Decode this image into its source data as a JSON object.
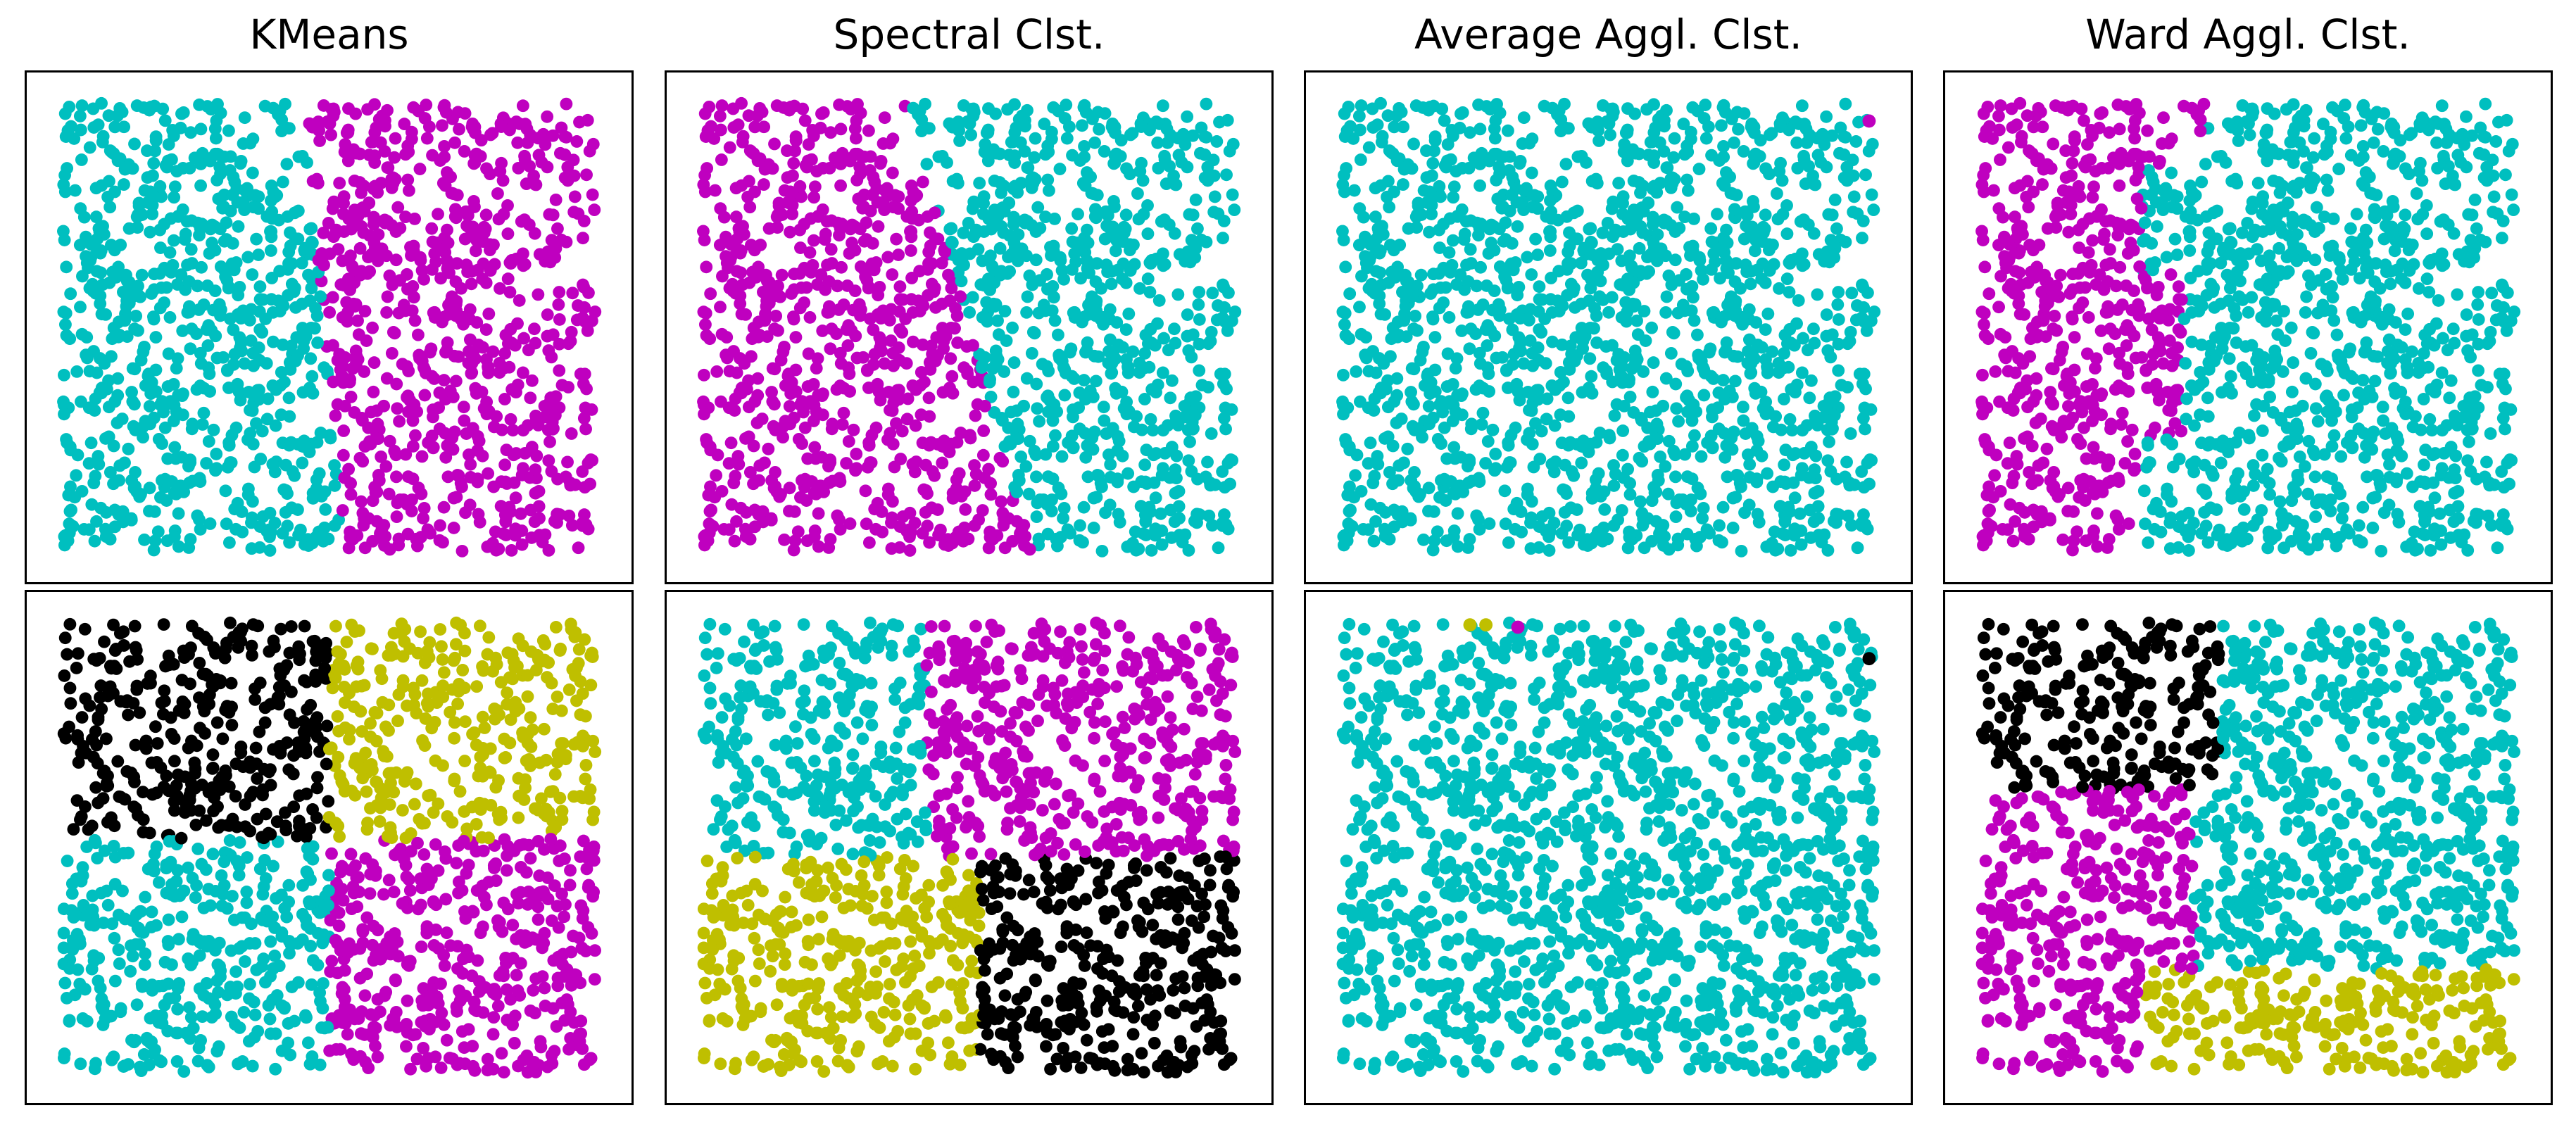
{
  "chart_data": [
    {
      "type": "scatter",
      "title": "KMeans",
      "dataset": "row-1",
      "n_clusters": 2,
      "xlim": [
        0,
        1
      ],
      "ylim": [
        0,
        1
      ],
      "axes_visible": false,
      "regions": [
        {
          "label": "cluster-0",
          "color": "#00bfbf",
          "rule": "x < 0.53 - 0.08*y"
        },
        {
          "label": "cluster-1",
          "color": "#bf00bf",
          "rule": "otherwise"
        }
      ]
    },
    {
      "type": "scatter",
      "title": "Spectral Clst.",
      "dataset": "row-1",
      "n_clusters": 2,
      "xlim": [
        0,
        1
      ],
      "ylim": [
        0,
        1
      ],
      "axes_visible": false,
      "regions": [
        {
          "label": "cluster-0",
          "color": "#bf00bf",
          "rule": "diagonal split from (0.38,1.0) to (0.62,0.0)"
        },
        {
          "label": "cluster-1",
          "color": "#00bfbf",
          "rule": "otherwise"
        }
      ]
    },
    {
      "type": "scatter",
      "title": "Average Aggl. Clst.",
      "dataset": "row-1",
      "n_clusters": 2,
      "xlim": [
        0,
        1
      ],
      "ylim": [
        0,
        1
      ],
      "axes_visible": false,
      "regions": [
        {
          "label": "cluster-0",
          "color": "#00bfbf",
          "rule": "nearly all points"
        },
        {
          "label": "cluster-1",
          "color": "#bf00bf",
          "rule": "single outlier near (0.99, 0.96)"
        }
      ]
    },
    {
      "type": "scatter",
      "title": "Ward Aggl. Clst.",
      "dataset": "row-1",
      "n_clusters": 2,
      "xlim": [
        0,
        1
      ],
      "ylim": [
        0,
        1
      ],
      "axes_visible": false,
      "regions": [
        {
          "label": "cluster-0",
          "color": "#bf00bf",
          "rule": "left strip, x < ~0.30 (wider in the middle rows)"
        },
        {
          "label": "cluster-1",
          "color": "#00bfbf",
          "rule": "otherwise"
        }
      ]
    },
    {
      "type": "scatter",
      "title": "",
      "dataset": "row-2",
      "n_clusters": 4,
      "xlim": [
        0,
        1
      ],
      "ylim": [
        0,
        1
      ],
      "axes_visible": false,
      "regions": [
        {
          "label": "cluster-0",
          "color": "#000000",
          "rule": "x < 0.5, y > 0.52"
        },
        {
          "label": "cluster-1",
          "color": "#bfbf00",
          "rule": "x >= 0.5, y > 0.52"
        },
        {
          "label": "cluster-2",
          "color": "#00bfbf",
          "rule": "x < 0.5, y <= 0.52"
        },
        {
          "label": "cluster-3",
          "color": "#bf00bf",
          "rule": "x >= 0.5, y <= 0.52"
        }
      ]
    },
    {
      "type": "scatter",
      "title": "",
      "dataset": "row-2",
      "n_clusters": 4,
      "xlim": [
        0,
        1
      ],
      "ylim": [
        0,
        1
      ],
      "axes_visible": false,
      "regions": [
        {
          "label": "cluster-0",
          "color": "#00bfbf",
          "rule": "x < 0.42, y > 0.48"
        },
        {
          "label": "cluster-1",
          "color": "#bf00bf",
          "rule": "x >= 0.42, y > 0.48"
        },
        {
          "label": "cluster-2",
          "color": "#bfbf00",
          "rule": "x < 0.52, y <= 0.48"
        },
        {
          "label": "cluster-3",
          "color": "#000000",
          "rule": "x >= 0.52, y <= 0.48"
        }
      ]
    },
    {
      "type": "scatter",
      "title": "",
      "dataset": "row-2",
      "n_clusters": 4,
      "xlim": [
        0,
        1
      ],
      "ylim": [
        0,
        1
      ],
      "axes_visible": false,
      "regions": [
        {
          "label": "cluster-0",
          "color": "#00bfbf",
          "rule": "nearly all points"
        },
        {
          "label": "cluster-1",
          "color": "#bfbf00",
          "rule": "two outliers near (0.25, 1.0)"
        },
        {
          "label": "cluster-2",
          "color": "#bf00bf",
          "rule": "one outlier near (0.33, 0.99)"
        },
        {
          "label": "cluster-3",
          "color": "#000000",
          "rule": "one outlier near (0.99, 0.92)"
        }
      ]
    },
    {
      "type": "scatter",
      "title": "",
      "dataset": "row-2",
      "n_clusters": 4,
      "xlim": [
        0,
        1
      ],
      "ylim": [
        0,
        1
      ],
      "axes_visible": false,
      "regions": [
        {
          "label": "cluster-0",
          "color": "#000000",
          "rule": "top-left, x < ~0.45, y > 0.63"
        },
        {
          "label": "cluster-1",
          "color": "#bf00bf",
          "rule": "left, x < ~0.40, y <= 0.63"
        },
        {
          "label": "cluster-2",
          "color": "#bfbf00",
          "rule": "bottom-right, x > 0.30, y < 0.23"
        },
        {
          "label": "cluster-3",
          "color": "#00bfbf",
          "rule": "otherwise"
        }
      ]
    }
  ]
}
